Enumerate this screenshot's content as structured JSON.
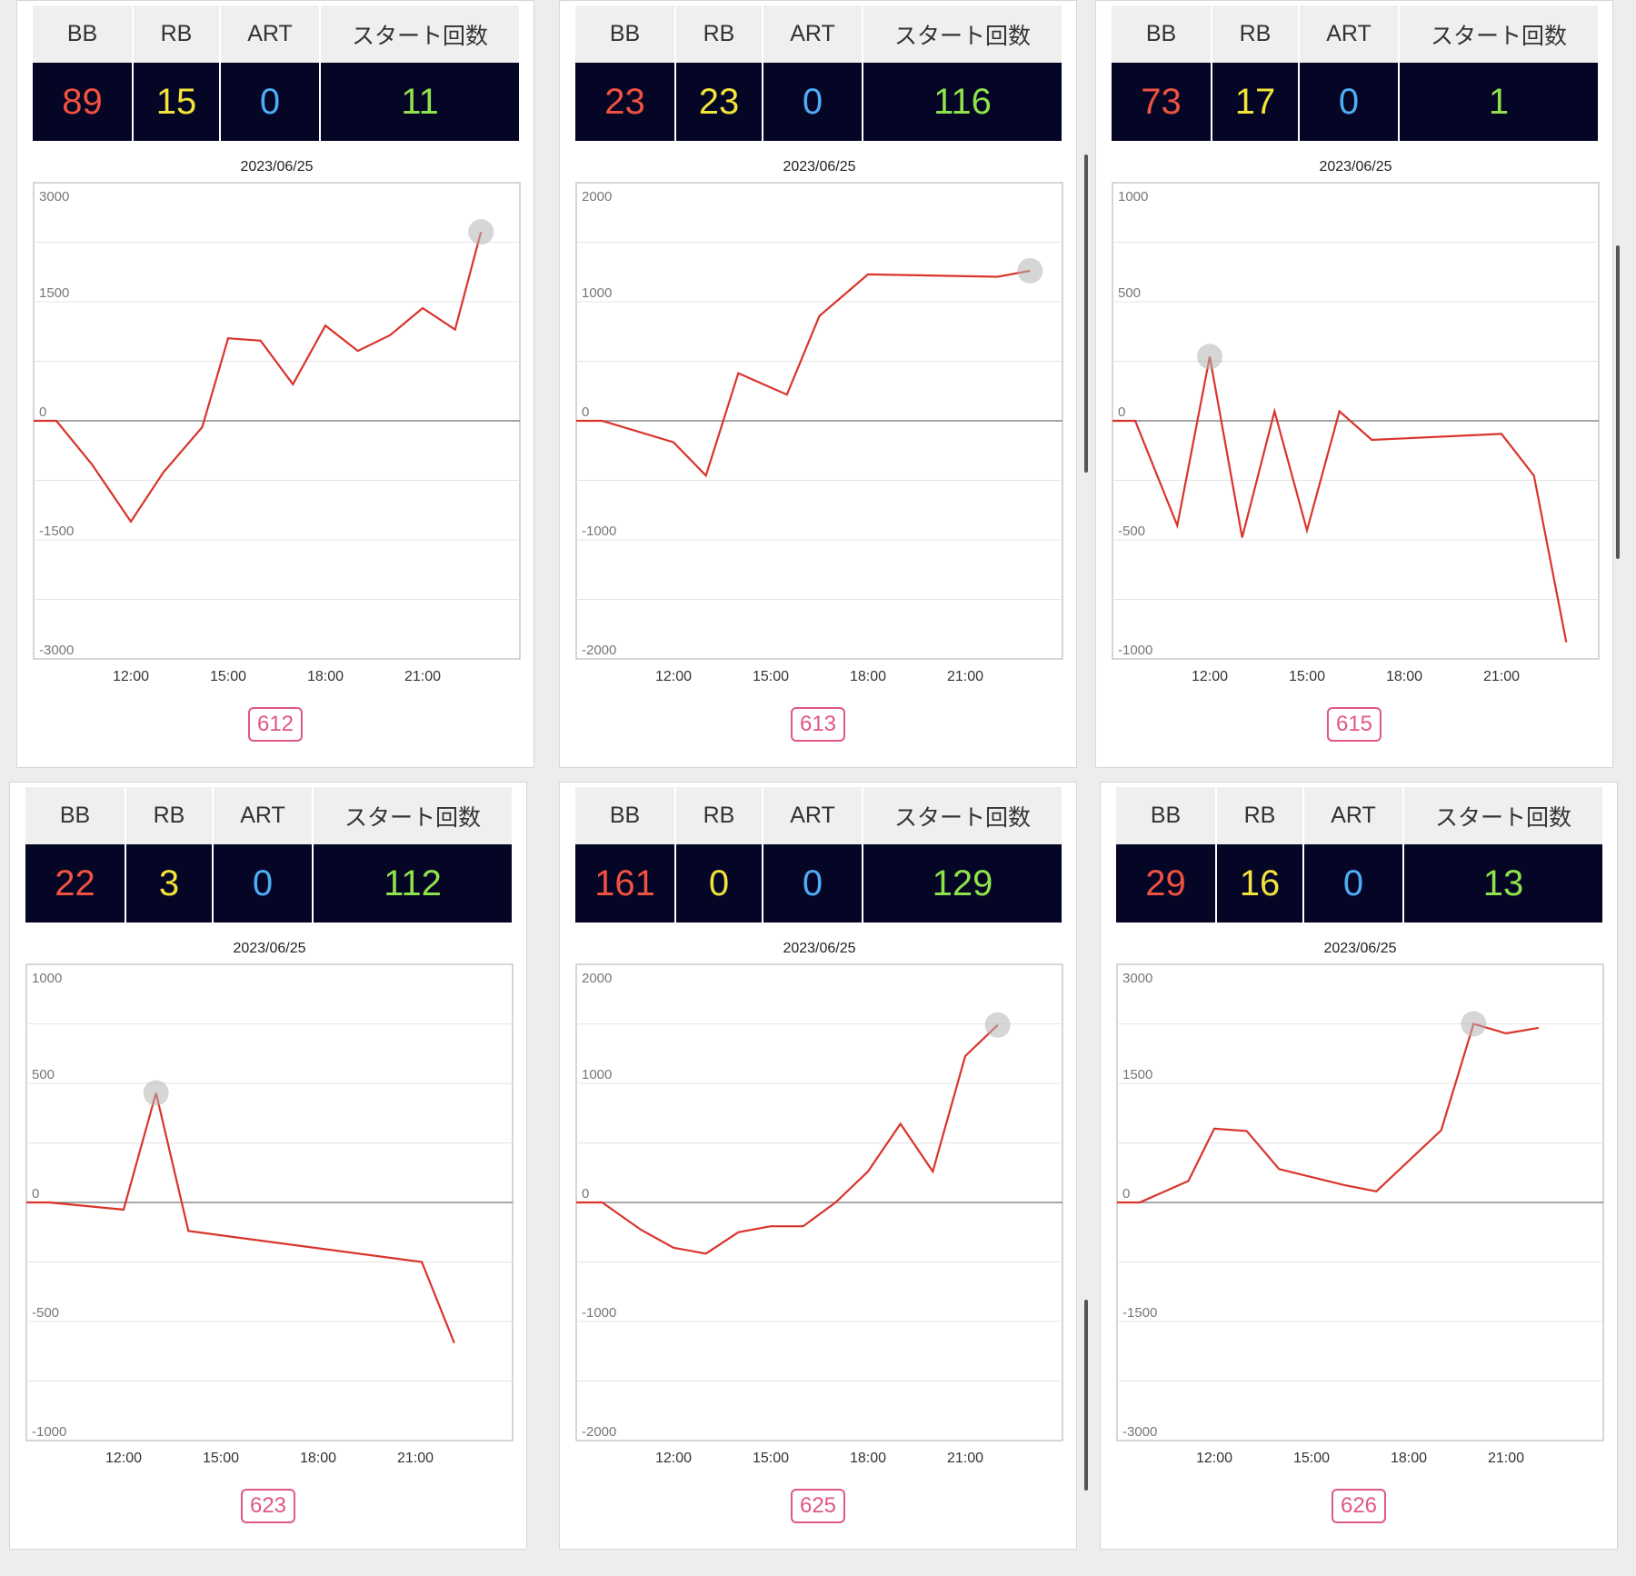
{
  "headers": {
    "bb": "BB",
    "rb": "RB",
    "art": "ART",
    "start": "スタート回数"
  },
  "colors": {
    "line": "#d9342b",
    "bb": "#f0523f",
    "rb": "#f2e33a",
    "art": "#4eaef5",
    "start": "#8fe34a",
    "badge": "#e0568a"
  },
  "chart_data": [
    {
      "type": "line",
      "machine": "612",
      "date": "2023/06/25",
      "stats": {
        "bb": "89",
        "rb": "15",
        "art": "0",
        "start": "11"
      },
      "ylim": [
        -3000,
        3000
      ],
      "yticks": [
        "3000",
        "1500",
        "0",
        "-1500",
        "-3000"
      ],
      "xlim": [
        9,
        24
      ],
      "xticks": [
        "12:00",
        "15:00",
        "18:00",
        "21:00"
      ],
      "points": [
        [
          9,
          0
        ],
        [
          9.7,
          0
        ],
        [
          10.8,
          -550
        ],
        [
          12,
          -1270
        ],
        [
          13,
          -650
        ],
        [
          14.2,
          -80
        ],
        [
          15,
          1040
        ],
        [
          16,
          1010
        ],
        [
          17,
          460
        ],
        [
          18,
          1200
        ],
        [
          19,
          880
        ],
        [
          20,
          1080
        ],
        [
          21,
          1420
        ],
        [
          22,
          1150
        ],
        [
          22.8,
          2380
        ]
      ]
    },
    {
      "type": "line",
      "machine": "613",
      "date": "2023/06/25",
      "stats": {
        "bb": "23",
        "rb": "23",
        "art": "0",
        "start": "116"
      },
      "ylim": [
        -2000,
        2000
      ],
      "yticks": [
        "2000",
        "1000",
        "0",
        "-1000",
        "-2000"
      ],
      "xlim": [
        9,
        24
      ],
      "xticks": [
        "12:00",
        "15:00",
        "18:00",
        "21:00"
      ],
      "points": [
        [
          9,
          0
        ],
        [
          9.8,
          0
        ],
        [
          12,
          -180
        ],
        [
          13,
          -460
        ],
        [
          14,
          400
        ],
        [
          15.5,
          220
        ],
        [
          16.5,
          880
        ],
        [
          18,
          1230
        ],
        [
          22,
          1210
        ],
        [
          23,
          1260
        ]
      ]
    },
    {
      "type": "line",
      "machine": "615",
      "date": "2023/06/25",
      "stats": {
        "bb": "73",
        "rb": "17",
        "art": "0",
        "start": "1"
      },
      "ylim": [
        -1000,
        1000
      ],
      "yticks": [
        "1000",
        "500",
        "0",
        "-500",
        "-1000"
      ],
      "xlim": [
        9,
        24
      ],
      "xticks": [
        "12:00",
        "15:00",
        "18:00",
        "21:00"
      ],
      "points": [
        [
          9,
          0
        ],
        [
          9.7,
          0
        ],
        [
          11,
          -440
        ],
        [
          12,
          270
        ],
        [
          13,
          -490
        ],
        [
          14,
          40
        ],
        [
          15,
          -460
        ],
        [
          16,
          40
        ],
        [
          17,
          -80
        ],
        [
          21,
          -55
        ],
        [
          22,
          -230
        ],
        [
          23,
          -930
        ]
      ]
    },
    {
      "type": "line",
      "machine": "623",
      "date": "2023/06/25",
      "stats": {
        "bb": "22",
        "rb": "3",
        "art": "0",
        "start": "112"
      },
      "ylim": [
        -1000,
        1000
      ],
      "yticks": [
        "1000",
        "500",
        "0",
        "-500",
        "-1000"
      ],
      "xlim": [
        9,
        24
      ],
      "xticks": [
        "12:00",
        "15:00",
        "18:00",
        "21:00"
      ],
      "points": [
        [
          9,
          0
        ],
        [
          9.7,
          0
        ],
        [
          12,
          -30
        ],
        [
          13,
          460
        ],
        [
          14,
          -120
        ],
        [
          21.2,
          -250
        ],
        [
          22.2,
          -590
        ]
      ]
    },
    {
      "type": "line",
      "machine": "625",
      "date": "2023/06/25",
      "stats": {
        "bb": "161",
        "rb": "0",
        "art": "0",
        "start": "129"
      },
      "ylim": [
        -2000,
        2000
      ],
      "yticks": [
        "2000",
        "1000",
        "0",
        "-1000",
        "-2000"
      ],
      "xlim": [
        9,
        24
      ],
      "xticks": [
        "12:00",
        "15:00",
        "18:00",
        "21:00"
      ],
      "points": [
        [
          9,
          0
        ],
        [
          9.8,
          0
        ],
        [
          11,
          -230
        ],
        [
          12,
          -380
        ],
        [
          13,
          -430
        ],
        [
          14,
          -250
        ],
        [
          15,
          -200
        ],
        [
          16,
          -200
        ],
        [
          17,
          0
        ],
        [
          18,
          260
        ],
        [
          19,
          660
        ],
        [
          20,
          260
        ],
        [
          21,
          1230
        ],
        [
          22,
          1490
        ]
      ]
    },
    {
      "type": "line",
      "machine": "626",
      "date": "2023/06/25",
      "stats": {
        "bb": "29",
        "rb": "16",
        "art": "0",
        "start": "13"
      },
      "ylim": [
        -3000,
        3000
      ],
      "yticks": [
        "3000",
        "1500",
        "0",
        "-1500",
        "-3000"
      ],
      "xlim": [
        9,
        24
      ],
      "xticks": [
        "12:00",
        "15:00",
        "18:00",
        "21:00"
      ],
      "points": [
        [
          9,
          0
        ],
        [
          9.7,
          0
        ],
        [
          11.2,
          270
        ],
        [
          12,
          930
        ],
        [
          13,
          900
        ],
        [
          14,
          420
        ],
        [
          16,
          220
        ],
        [
          17,
          140
        ],
        [
          19,
          910
        ],
        [
          20,
          2250
        ],
        [
          21,
          2130
        ],
        [
          22,
          2200
        ]
      ]
    }
  ]
}
